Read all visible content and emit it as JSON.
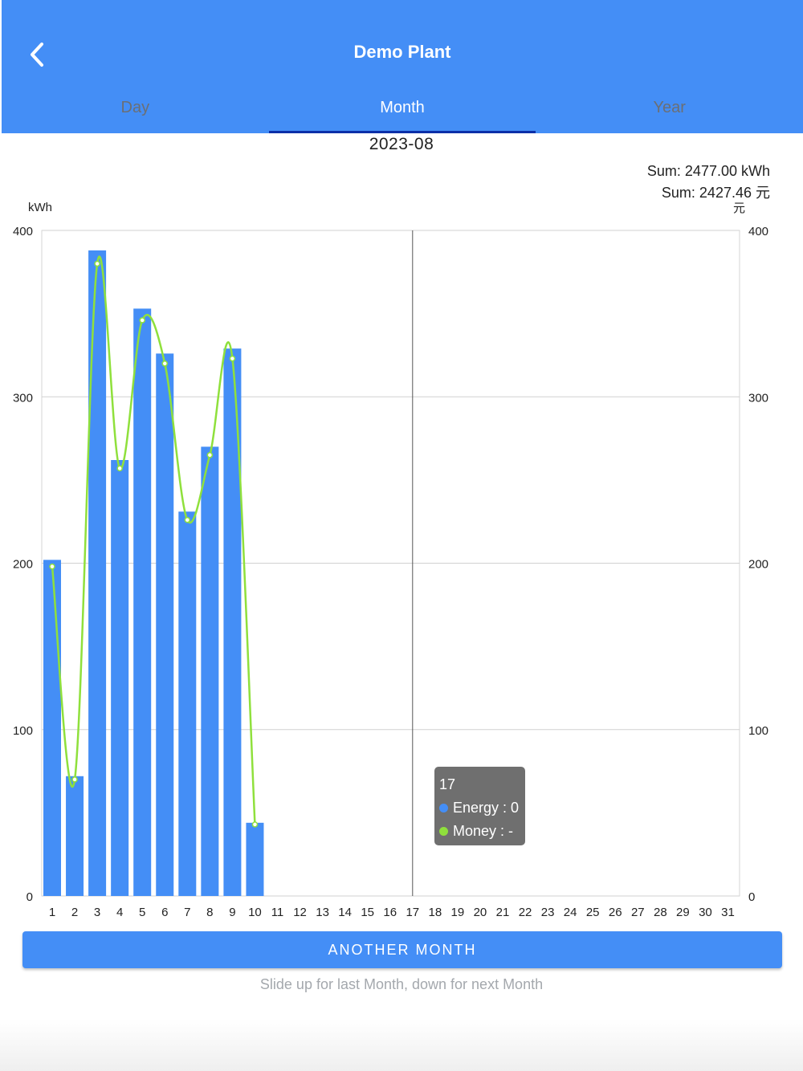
{
  "header": {
    "title": "Demo Plant",
    "back_icon": "chevron-left-icon"
  },
  "tabs": [
    {
      "label": "Day",
      "active": false
    },
    {
      "label": "Month",
      "active": true
    },
    {
      "label": "Year",
      "active": false
    }
  ],
  "period": "2023-08",
  "sums": {
    "energy": "Sum: 2477.00 kWh",
    "money": "Sum: 2427.46 元"
  },
  "chart_data": {
    "type": "bar",
    "left_axis_label": "kWh",
    "right_axis_label": "元",
    "ylim": [
      0,
      400
    ],
    "yticks": [
      0,
      100,
      200,
      300,
      400
    ],
    "categories": [
      "1",
      "2",
      "3",
      "4",
      "5",
      "6",
      "7",
      "8",
      "9",
      "10",
      "11",
      "12",
      "13",
      "14",
      "15",
      "16",
      "17",
      "18",
      "19",
      "20",
      "21",
      "22",
      "23",
      "24",
      "25",
      "26",
      "27",
      "28",
      "29",
      "30",
      "31"
    ],
    "series": [
      {
        "name": "Energy",
        "type": "bar",
        "color": "#448ef6",
        "values": [
          202,
          72,
          388,
          262,
          353,
          326,
          231,
          270,
          329,
          44,
          0,
          0,
          0,
          0,
          0,
          0,
          0,
          0,
          0,
          0,
          0,
          0,
          0,
          0,
          0,
          0,
          0,
          0,
          0,
          0,
          0
        ]
      },
      {
        "name": "Money",
        "type": "line",
        "color": "#8fe03c",
        "values": [
          198,
          70,
          380,
          257,
          346,
          320,
          226,
          265,
          323,
          43,
          null,
          null,
          null,
          null,
          null,
          null,
          null,
          null,
          null,
          null,
          null,
          null,
          null,
          null,
          null,
          null,
          null,
          null,
          null,
          null,
          null
        ]
      }
    ],
    "grid": true,
    "highlight_category": "17"
  },
  "tooltip": {
    "title": "17",
    "energy": "Energy : 0",
    "money": "Money : -"
  },
  "actions": {
    "another_month": "ANOTHER MONTH",
    "hint": "Slide up for last Month, down for next Month"
  },
  "colors": {
    "header": "#448ef6",
    "bar": "#448ef6",
    "line": "#8fe03c",
    "tab_underline": "#0b2fa8"
  }
}
